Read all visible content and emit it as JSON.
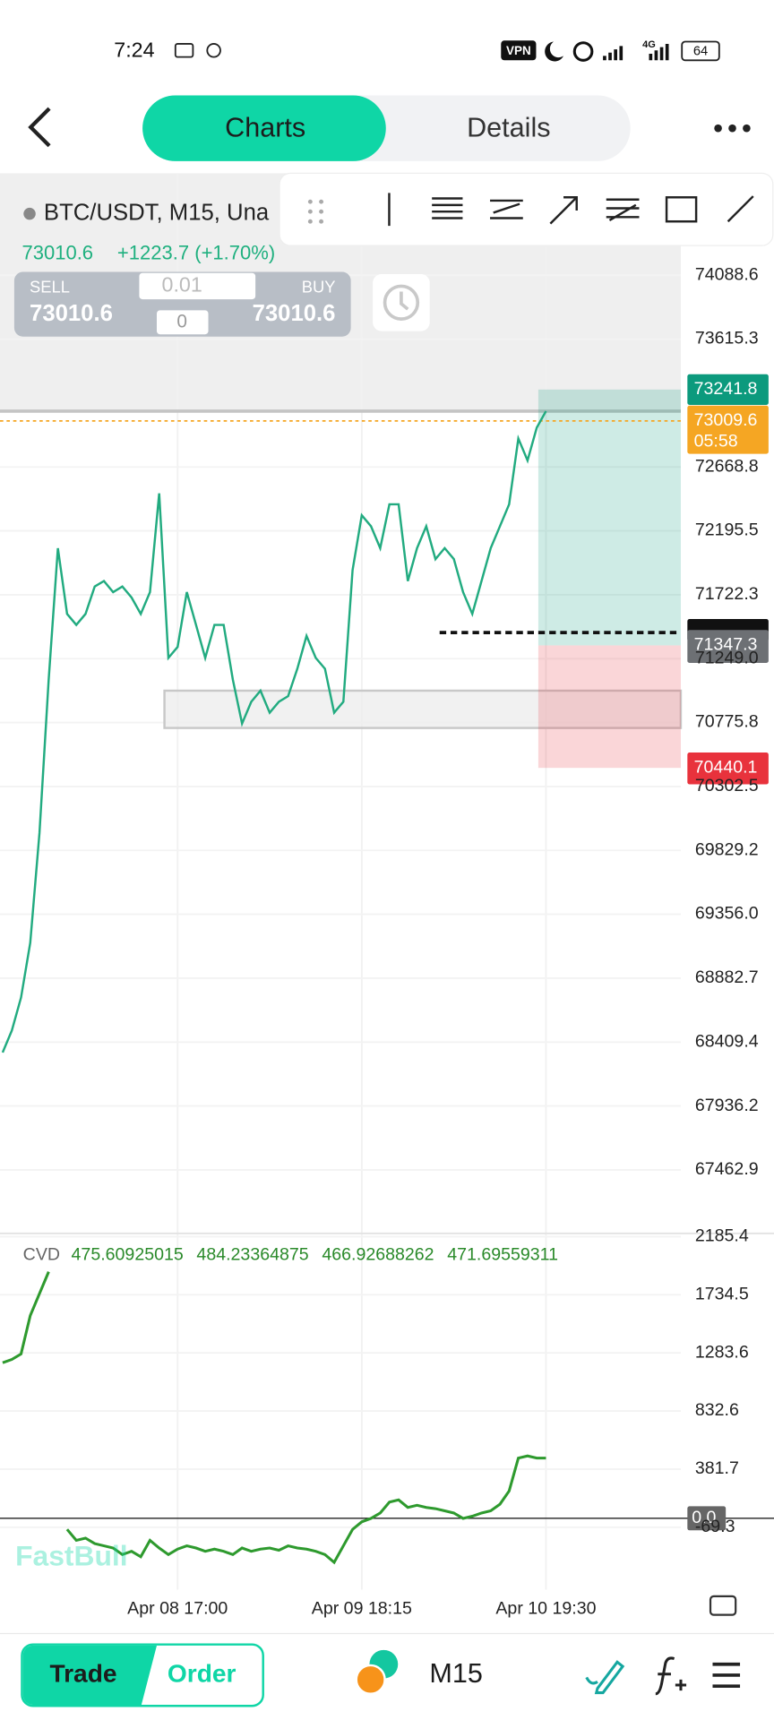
{
  "status_bar": {
    "time": "7:24",
    "vpn": "VPN",
    "network": "4G",
    "battery": "64"
  },
  "header": {
    "tabs": [
      "Charts",
      "Details"
    ],
    "active_tab": 0
  },
  "symbol": {
    "title": "BTC/USDT, M15, Una",
    "price": "73010.6",
    "change": "+1223.7 (+1.70%)"
  },
  "trade_panel": {
    "sell_label": "SELL",
    "sell_price": "73010.6",
    "buy_label": "BUY",
    "buy_price": "73010.6",
    "lot": "0.01",
    "count": "0"
  },
  "price_chart": {
    "type": "line",
    "color": "#22ab80",
    "categories": [
      null,
      null,
      null,
      null,
      null,
      null,
      null,
      null,
      null,
      null,
      null,
      null,
      null,
      null,
      null,
      null,
      null,
      null,
      null,
      "Apr 08 17:00",
      null,
      null,
      null,
      null,
      null,
      null,
      null,
      null,
      null,
      null,
      null,
      null,
      null,
      null,
      null,
      null,
      null,
      null,
      null,
      "Apr 09 18:15",
      null,
      null,
      null,
      null,
      null,
      null,
      null,
      null,
      null,
      null,
      null,
      null,
      null,
      null,
      null,
      null,
      null,
      null,
      null,
      "Apr 10 19:30"
    ],
    "values": [
      68333,
      68495,
      68739,
      69145,
      69957,
      71093,
      72067,
      71580,
      71499,
      71580,
      71783,
      71824,
      71742,
      71783,
      71702,
      71580,
      71742,
      72473,
      71255,
      71336,
      71742,
      71499,
      71255,
      71499,
      71499,
      71093,
      70768,
      70930,
      71012,
      70849,
      70930,
      70971,
      71174,
      71418,
      71255,
      71174,
      70849,
      70930,
      71905,
      72311,
      72230,
      72067,
      72392,
      72392,
      71824,
      72067,
      72230,
      71986,
      72067,
      71986,
      71742,
      71580,
      71824,
      72067,
      72230,
      72392,
      72879,
      72717,
      72960,
      73082
    ],
    "ylim": [
      66993,
      74844
    ],
    "yticks": [
      74088.6,
      73615.3,
      72668.8,
      72195.5,
      71722.3,
      {
        "value": 71249,
        "label": "71249.0"
      },
      70775.8,
      70302.5,
      69829.2,
      {
        "value": 69356,
        "label": "69356.0"
      },
      68882.7,
      68409.4,
      67936.2,
      67462.9
    ],
    "last_price": 73009.6,
    "last_price_color": "#f5a623",
    "countdown": "05:58",
    "position": {
      "take_profit": 73241.8,
      "entry": 71347.3,
      "stop_loss": 70440.1,
      "profit_color": "#0c9a7d",
      "loss_color": "#e8323c",
      "entry_color": "#6d7074"
    }
  },
  "cvd_chart": {
    "type": "line",
    "name": "CVD",
    "readouts": [
      "475.60925015",
      "484.23364875",
      "466.92688262",
      "471.69559311"
    ],
    "color": "#2e9a2e",
    "values": [
      1207,
      1233,
      1275,
      1573,
      1743,
      1913,
      null,
      -86,
      -171,
      -154,
      -197,
      -214,
      -231,
      -282,
      -256,
      -299,
      -171,
      -231,
      -282,
      -239,
      -214,
      -231,
      -256,
      -239,
      -256,
      -282,
      -231,
      -256,
      -239,
      -231,
      -248,
      -214,
      -231,
      -239,
      -256,
      -282,
      -342,
      -214,
      -86,
      -27,
      -1,
      41,
      126,
      143,
      84,
      101,
      84,
      75,
      58,
      41,
      -1,
      16,
      41,
      58,
      109,
      212,
      467,
      484,
      467,
      467
    ],
    "ylim": [
      -554,
      2211
    ],
    "yticks": [
      2185.4,
      1734.5,
      1283.6,
      832.6,
      381.7,
      -69.3
    ],
    "zero_line": {
      "value": 0,
      "label": "0.0"
    }
  },
  "watermark": "FastBull",
  "bottom_bar": {
    "tabs": [
      "Trade",
      "Order"
    ],
    "timeframe": "M15"
  }
}
